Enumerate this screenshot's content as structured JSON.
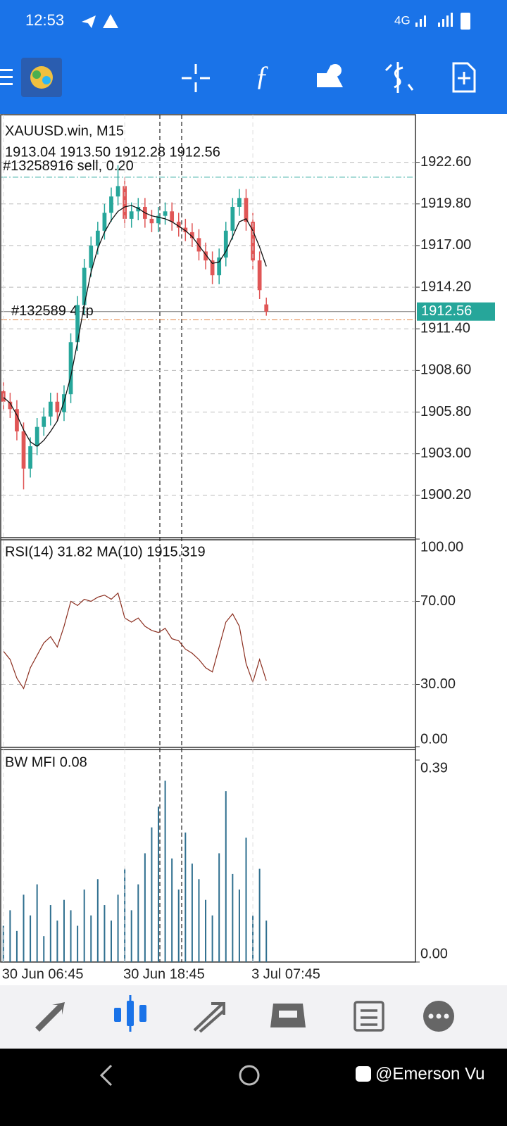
{
  "status_bar": {
    "time": "12:53",
    "network": "4G"
  },
  "chart_data": [
    {
      "type": "candlestick",
      "title": "XAUUSD.win, M15",
      "ohlc": "1913.04 1913.50 1912.28 1912.56",
      "order_label": "#13258916 sell, 0.20",
      "tp_label": "#132589 4 tp",
      "sell_level": 1921.6,
      "tp_level": 1912.0,
      "price": 1912.56,
      "up_color": "#26a69a",
      "down_color": "#e05656",
      "ma_color": "#111111",
      "grid": true,
      "ylim": [
        1897.4,
        1925.8
      ],
      "yticks": [
        {
          "value": 1922.6,
          "label": "1922.60"
        },
        {
          "value": 1919.8,
          "label": "1919.80"
        },
        {
          "value": 1917,
          "label": "1917.00"
        },
        {
          "value": 1914.2,
          "label": "1914.20"
        },
        {
          "value": 1911.4,
          "label": "1911.40"
        },
        {
          "value": 1908.6,
          "label": "1908.60"
        },
        {
          "value": 1905.8,
          "label": "1905.80"
        },
        {
          "value": 1903,
          "label": "1903.00"
        },
        {
          "value": 1900.2,
          "label": "1900.20"
        }
      ],
      "open": [
        1907.2,
        1906.5,
        1906.0,
        1904.5,
        1902.0,
        1903.5,
        1904.8,
        1905.5,
        1906.5,
        1905.8,
        1907.0,
        1910.5,
        1913.0,
        1915.5,
        1917.0,
        1918.0,
        1919.2,
        1920.3,
        1921.0,
        1918.8,
        1919.3,
        1919.6,
        1918.8,
        1918.5,
        1919.0,
        1919.3,
        1918.6,
        1918.2,
        1917.9,
        1917.5,
        1916.6,
        1916.0,
        1915.0,
        1916.2,
        1918.0,
        1919.6,
        1920.2,
        1918.6,
        1916.0,
        1913.04
      ],
      "high": [
        1907.8,
        1907.1,
        1906.6,
        1905.1,
        1904.1,
        1905.4,
        1906.1,
        1907.1,
        1907.1,
        1907.6,
        1911.1,
        1913.6,
        1916.1,
        1917.6,
        1918.6,
        1919.8,
        1920.9,
        1922.4,
        1921.6,
        1919.9,
        1920.2,
        1920.2,
        1919.4,
        1919.6,
        1919.9,
        1919.9,
        1919.2,
        1918.8,
        1918.5,
        1918.1,
        1917.2,
        1916.6,
        1916.8,
        1918.6,
        1920.2,
        1920.8,
        1920.8,
        1919.2,
        1916.6,
        1913.5
      ],
      "low": [
        1905.9,
        1905.4,
        1903.9,
        1900.6,
        1901.4,
        1902.9,
        1904.2,
        1904.9,
        1905.2,
        1905.2,
        1906.4,
        1909.9,
        1912.4,
        1914.9,
        1916.4,
        1917.4,
        1918.6,
        1919.7,
        1918.2,
        1918.2,
        1918.7,
        1918.2,
        1917.9,
        1917.9,
        1918.4,
        1918.0,
        1917.6,
        1917.3,
        1916.9,
        1916.0,
        1915.4,
        1914.4,
        1914.4,
        1915.6,
        1917.4,
        1919.0,
        1918.0,
        1915.4,
        1913.4,
        1912.28
      ],
      "close": [
        1906.5,
        1906.0,
        1904.5,
        1902.0,
        1903.5,
        1904.8,
        1905.5,
        1906.5,
        1905.8,
        1907.0,
        1910.5,
        1913.0,
        1915.5,
        1917.0,
        1918.0,
        1919.2,
        1920.3,
        1921.0,
        1918.8,
        1919.3,
        1919.6,
        1918.8,
        1918.5,
        1919.0,
        1919.3,
        1918.6,
        1918.2,
        1917.9,
        1917.5,
        1916.6,
        1916.0,
        1915.0,
        1916.2,
        1918.0,
        1919.6,
        1920.2,
        1918.6,
        1916.0,
        1914.0,
        1912.56
      ],
      "ma": [
        1906.8,
        1906.4,
        1905.6,
        1904.6,
        1903.8,
        1903.5,
        1903.9,
        1904.5,
        1905.2,
        1906.5,
        1908.2,
        1910.5,
        1913.0,
        1915.2,
        1916.8,
        1917.9,
        1918.7,
        1919.3,
        1919.6,
        1919.7,
        1919.5,
        1919.2,
        1919.0,
        1918.9,
        1918.8,
        1918.6,
        1918.3,
        1918.0,
        1917.6,
        1917.0,
        1916.4,
        1915.8,
        1915.9,
        1916.6,
        1917.6,
        1918.6,
        1918.8,
        1918.0,
        1916.9,
        1915.6
      ]
    },
    {
      "type": "line",
      "title": "RSI(14) 31.82 MA(10) 1915.319",
      "color": "#8b2e1f",
      "grid": true,
      "ylim": [
        0,
        100
      ],
      "yticks": [
        {
          "value": 100,
          "label": "100.00"
        },
        {
          "value": 70,
          "label": "70.00"
        },
        {
          "value": 30,
          "label": "30.00"
        },
        {
          "value": 0,
          "label": "0.00"
        }
      ],
      "values": [
        46,
        42,
        33,
        28,
        38,
        44,
        50,
        53,
        48,
        58,
        70,
        68,
        71,
        70,
        72,
        73,
        71,
        74,
        62,
        60,
        62,
        58,
        56,
        55,
        57,
        52,
        51,
        47,
        45,
        42,
        38,
        36,
        48,
        60,
        64,
        58,
        40,
        31,
        42,
        31.82
      ]
    },
    {
      "type": "bar",
      "title": "BW MFI 0.08",
      "color": "#2f6f8f",
      "ylim": [
        0,
        0.39
      ],
      "yticks": [
        {
          "value": 0.39,
          "label": "0.39"
        },
        {
          "value": 0,
          "label": "0.00"
        }
      ],
      "values": [
        0.07,
        0.1,
        0.06,
        0.13,
        0.09,
        0.15,
        0.05,
        0.11,
        0.08,
        0.12,
        0.1,
        0.07,
        0.14,
        0.09,
        0.16,
        0.11,
        0.08,
        0.13,
        0.18,
        0.1,
        0.15,
        0.21,
        0.26,
        0.3,
        0.35,
        0.2,
        0.14,
        0.25,
        0.19,
        0.16,
        0.12,
        0.09,
        0.21,
        0.33,
        0.17,
        0.14,
        0.24,
        0.09,
        0.18,
        0.08
      ],
      "categories": [
        "30 Jun 06:45",
        null,
        null,
        null,
        null,
        null,
        null,
        null,
        null,
        null,
        null,
        null,
        null,
        null,
        null,
        null,
        null,
        null,
        "30 Jun 18:45",
        null,
        null,
        null,
        null,
        null,
        null,
        null,
        null,
        null,
        null,
        null,
        null,
        null,
        null,
        null,
        null,
        null,
        null,
        "3 Jul 07:45",
        null,
        null
      ]
    }
  ],
  "watermark": "@Emerson Vu"
}
